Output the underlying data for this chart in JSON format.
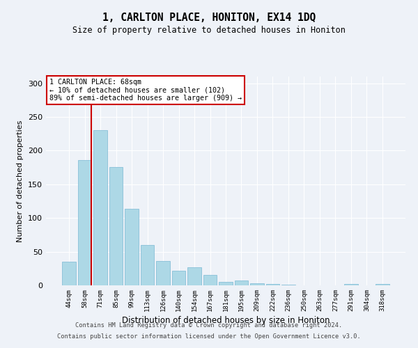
{
  "title": "1, CARLTON PLACE, HONITON, EX14 1DQ",
  "subtitle": "Size of property relative to detached houses in Honiton",
  "xlabel": "Distribution of detached houses by size in Honiton",
  "ylabel": "Number of detached properties",
  "bar_labels": [
    "44sqm",
    "58sqm",
    "71sqm",
    "85sqm",
    "99sqm",
    "113sqm",
    "126sqm",
    "140sqm",
    "154sqm",
    "167sqm",
    "181sqm",
    "195sqm",
    "209sqm",
    "222sqm",
    "236sqm",
    "250sqm",
    "263sqm",
    "277sqm",
    "291sqm",
    "304sqm",
    "318sqm"
  ],
  "bar_values": [
    35,
    186,
    230,
    176,
    114,
    60,
    36,
    22,
    27,
    16,
    5,
    7,
    3,
    2,
    1,
    0,
    0,
    0,
    2,
    0,
    2
  ],
  "bar_color": "#add8e6",
  "bar_edge_color": "#7ab8d4",
  "annotation_line1": "1 CARLTON PLACE: 68sqm",
  "annotation_line2": "← 10% of detached houses are smaller (102)",
  "annotation_line3": "89% of semi-detached houses are larger (909) →",
  "annotation_box_color": "#ffffff",
  "annotation_box_edgecolor": "#cc0000",
  "vline_color": "#cc0000",
  "vline_x": 1.43,
  "ylim": [
    0,
    310
  ],
  "yticks": [
    0,
    50,
    100,
    150,
    200,
    250,
    300
  ],
  "background_color": "#eef2f8",
  "footer1": "Contains HM Land Registry data © Crown copyright and database right 2024.",
  "footer2": "Contains public sector information licensed under the Open Government Licence v3.0."
}
